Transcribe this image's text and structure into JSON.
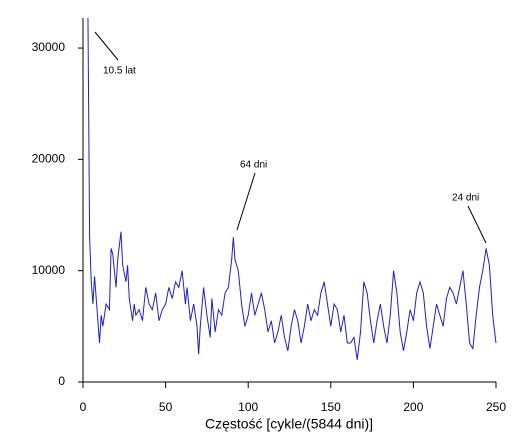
{
  "chart_data": {
    "type": "line",
    "xlabel": "Częstość [cykle/(5844 dni)]",
    "x": [
      3,
      4,
      5,
      6,
      7,
      8,
      10,
      11,
      12,
      14,
      16,
      17,
      18,
      20,
      21,
      23,
      24,
      26,
      27,
      28,
      30,
      31,
      32,
      34,
      36,
      38,
      40,
      42,
      44,
      46,
      48,
      50,
      52,
      54,
      56,
      58,
      60,
      62,
      63,
      65,
      67,
      69,
      70,
      71,
      73,
      75,
      77,
      78,
      80,
      82,
      84,
      86,
      88,
      90,
      91,
      92,
      94,
      96,
      98,
      100,
      102,
      104,
      106,
      108,
      110,
      112,
      114,
      116,
      118,
      120,
      122,
      124,
      126,
      128,
      130,
      132,
      134,
      136,
      138,
      140,
      142,
      144,
      146,
      148,
      150,
      152,
      154,
      156,
      158,
      160,
      162,
      164,
      166,
      168,
      170,
      172,
      174,
      176,
      178,
      180,
      182,
      184,
      186,
      188,
      190,
      192,
      194,
      196,
      198,
      200,
      202,
      204,
      206,
      208,
      210,
      212,
      214,
      216,
      218,
      220,
      222,
      224,
      226,
      228,
      230,
      232,
      234,
      236,
      238,
      240,
      242,
      244,
      246,
      248,
      250
    ],
    "series": [
      {
        "color": "#1f1fc8",
        "values": [
          32700,
          13000,
          9000,
          7000,
          9500,
          7500,
          3500,
          6000,
          5000,
          7000,
          6500,
          12000,
          11500,
          8500,
          11000,
          13500,
          10500,
          9000,
          10500,
          7500,
          5500,
          7000,
          6000,
          6500,
          5500,
          8500,
          7000,
          6500,
          8000,
          5500,
          6500,
          7000,
          8500,
          7500,
          9000,
          8500,
          10000,
          7000,
          8500,
          5500,
          7000,
          5000,
          2500,
          5000,
          8500,
          6000,
          4000,
          7500,
          4500,
          6500,
          6000,
          8000,
          8500,
          11000,
          13000,
          11000,
          10000,
          7000,
          5000,
          6000,
          8000,
          6000,
          7000,
          8000,
          6500,
          4500,
          5500,
          3500,
          4500,
          6000,
          4000,
          2800,
          5000,
          6500,
          5500,
          3500,
          5000,
          7000,
          5500,
          6500,
          6000,
          8000,
          9000,
          7000,
          5000,
          7000,
          6500,
          4500,
          6000,
          3500,
          3500,
          4000,
          2000,
          4500,
          9000,
          8000,
          5500,
          3500,
          5500,
          7000,
          5000,
          3500,
          6000,
          10000,
          8000,
          4500,
          2800,
          4500,
          6500,
          5500,
          8000,
          9000,
          8000,
          5000,
          3000,
          5000,
          7000,
          6000,
          5000,
          7500,
          8500,
          8000,
          7000,
          8500,
          10000,
          7000,
          3500,
          3000,
          6000,
          8500,
          10000,
          12000,
          10500,
          6000,
          3500
        ]
      }
    ],
    "xlim": [
      0,
      250
    ],
    "xticks": [
      0,
      50,
      100,
      150,
      200,
      250
    ],
    "ylim": [
      0,
      32700
    ],
    "yticks": [
      0,
      10000,
      20000,
      30000
    ],
    "annotations": [
      {
        "text": "10.5 lat"
      },
      {
        "text": "64 dni"
      },
      {
        "text": "24 dni"
      }
    ]
  }
}
